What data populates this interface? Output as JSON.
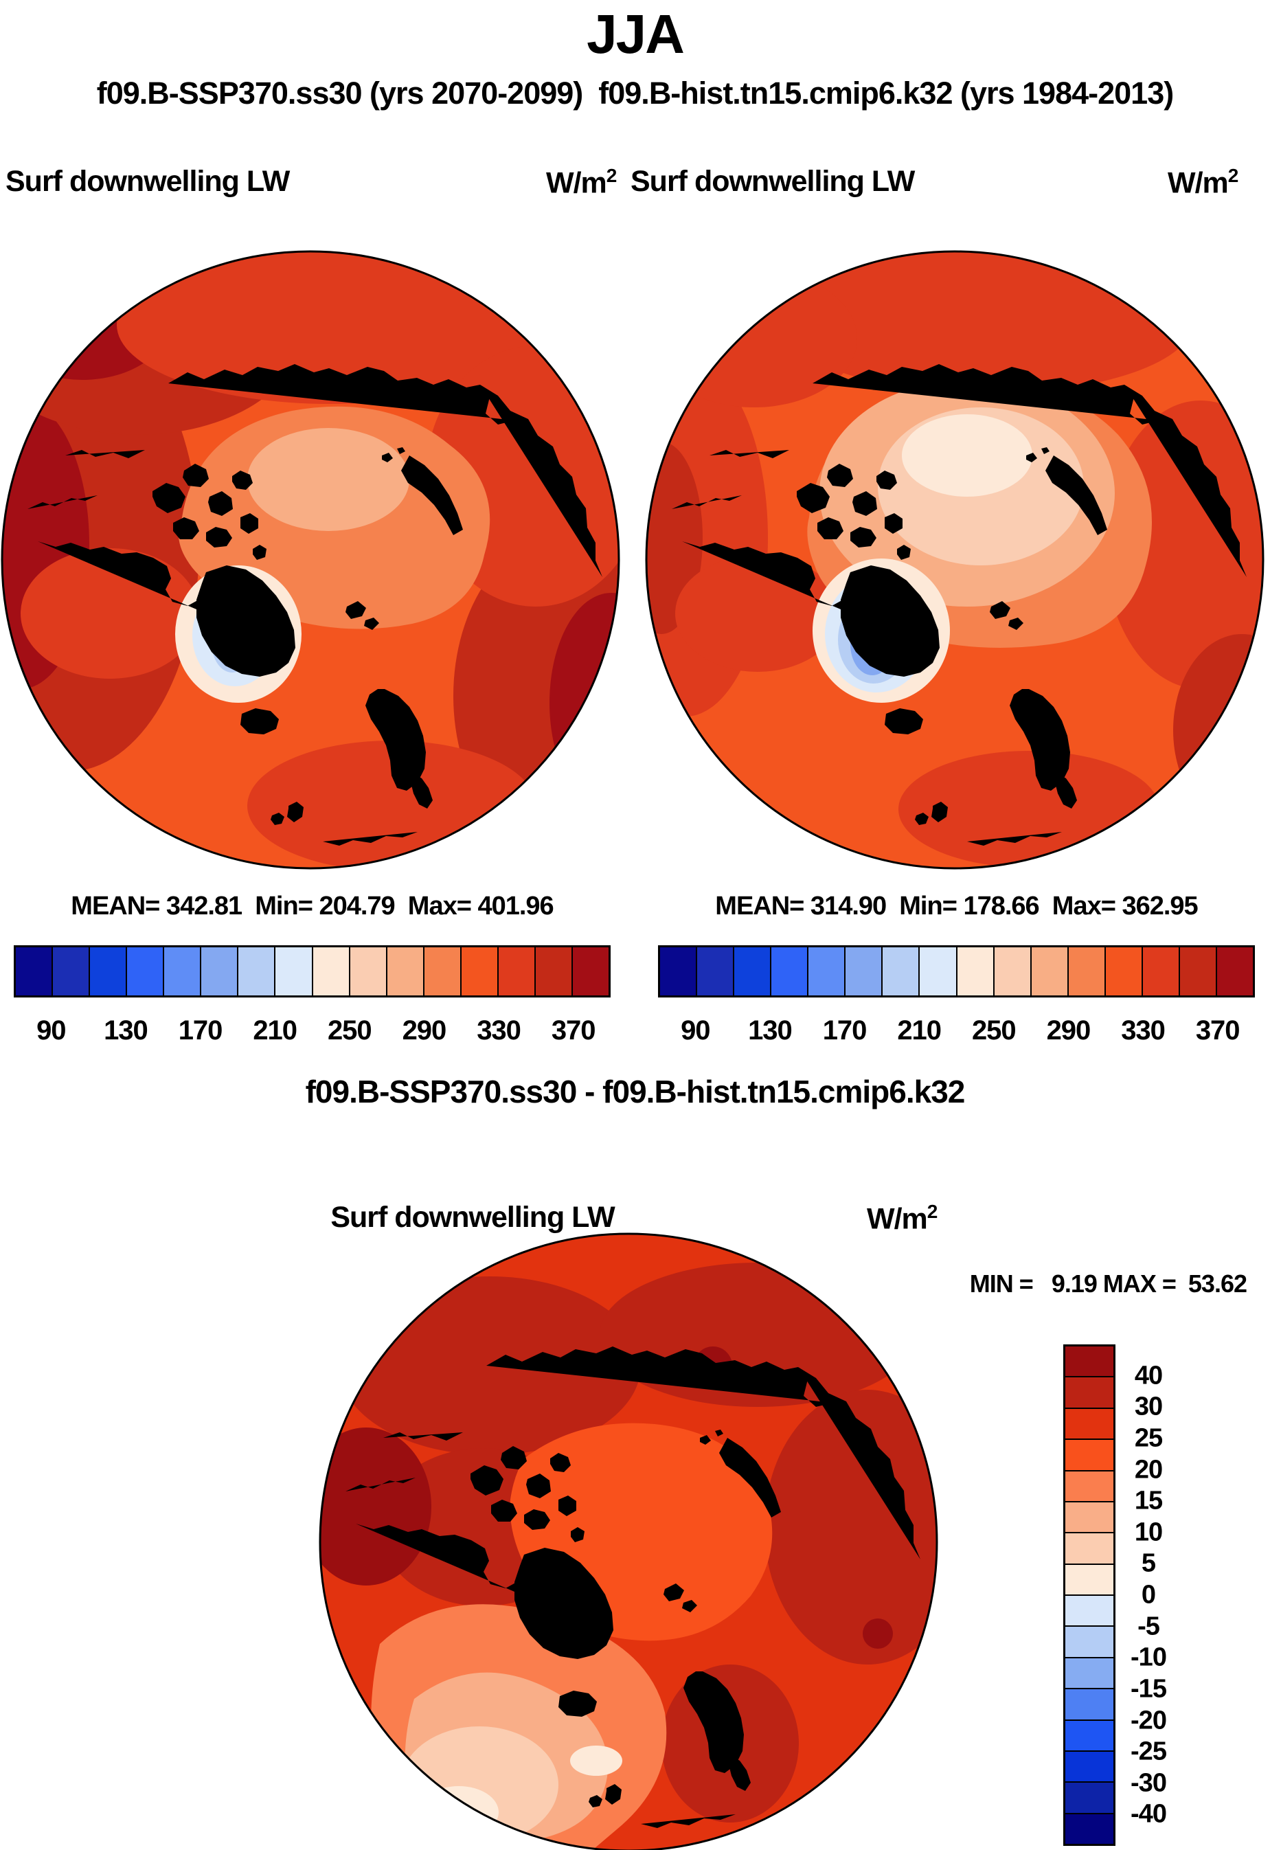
{
  "title": "JJA",
  "subtitle": "f09.B-SSP370.ss30 (yrs 2070-2099)  f09.B-hist.tn15.cmip6.k32 (yrs 1984-2013)",
  "panels": {
    "left": {
      "label": "Surf downwelling LW",
      "unit_base": "W/m",
      "unit_exp": "2",
      "stats": "MEAN= 342.81  Min= 204.79  Max= 401.96"
    },
    "right": {
      "label": "Surf downwelling LW",
      "unit_base": "W/m",
      "unit_exp": "2",
      "stats": "MEAN= 314.90  Min= 178.66  Max= 362.95"
    },
    "diff": {
      "title": "f09.B-SSP370.ss30 - f09.B-hist.tn15.cmip6.k32",
      "label": "Surf downwelling LW",
      "unit_base": "W/m",
      "unit_exp": "2",
      "minmax": "MIN =   9.19 MAX =  53.62"
    }
  },
  "colorbar": {
    "hticks": [
      "90",
      "130",
      "170",
      "210",
      "250",
      "290",
      "330",
      "370"
    ],
    "vticks": [
      "40",
      "30",
      "25",
      "20",
      "15",
      "10",
      "5",
      "0",
      "-5",
      "-10",
      "-15",
      "-20",
      "-25",
      "-30",
      "-40"
    ]
  },
  "colors": {
    "palette_main": [
      "#08088E",
      "#1B2EB4",
      "#0E41DC",
      "#2F63F7",
      "#5F8DF6",
      "#84A8F1",
      "#B6CEF4",
      "#DBE9FA",
      "#FDE9D8",
      "#FACDB2",
      "#F8AE85",
      "#F5824E",
      "#F3551F",
      "#DF3B1D",
      "#C32A17",
      "#A30E15"
    ],
    "palette_diff": [
      "#9A0E10",
      "#BC2314",
      "#E2330F",
      "#F9511C",
      "#FA7E4E",
      "#F9AE88",
      "#FBCDB1",
      "#FDEAD9",
      "#D7E6FA",
      "#B4CDF5",
      "#86ACF2",
      "#4E80F3",
      "#1E55F3",
      "#0834D8",
      "#0D23A8",
      "#030380"
    ]
  },
  "chart_data": [
    {
      "type": "heatmap",
      "panel": "top-left",
      "season": "JJA",
      "run": "f09.B-SSP370.ss30",
      "years": "2070-2099",
      "title": "Surf downwelling LW",
      "units": "W/m2",
      "projection": "north-polar-stereographic",
      "mean": 342.81,
      "min": 204.79,
      "max": 401.96,
      "colorbar_tick_values": [
        90,
        130,
        170,
        210,
        250,
        290,
        330,
        370
      ],
      "level_step": 20,
      "palette_ref": "palette_main",
      "legend_position": "below"
    },
    {
      "type": "heatmap",
      "panel": "top-right",
      "season": "JJA",
      "run": "f09.B-hist.tn15.cmip6.k32",
      "years": "1984-2013",
      "title": "Surf downwelling LW",
      "units": "W/m2",
      "projection": "north-polar-stereographic",
      "mean": 314.9,
      "min": 178.66,
      "max": 362.95,
      "colorbar_tick_values": [
        90,
        130,
        170,
        210,
        250,
        290,
        330,
        370
      ],
      "level_step": 20,
      "palette_ref": "palette_main",
      "legend_position": "below"
    },
    {
      "type": "heatmap",
      "panel": "bottom-difference",
      "season": "JJA",
      "run": "f09.B-SSP370.ss30 - f09.B-hist.tn15.cmip6.k32",
      "title": "Surf downwelling LW",
      "units": "W/m2",
      "projection": "north-polar-stereographic",
      "min": 9.19,
      "max": 53.62,
      "colorbar_tick_values": [
        40,
        30,
        25,
        20,
        15,
        10,
        5,
        0,
        -5,
        -10,
        -15,
        -20,
        -25,
        -30,
        -40
      ],
      "palette_ref": "palette_diff",
      "legend_position": "right"
    }
  ]
}
